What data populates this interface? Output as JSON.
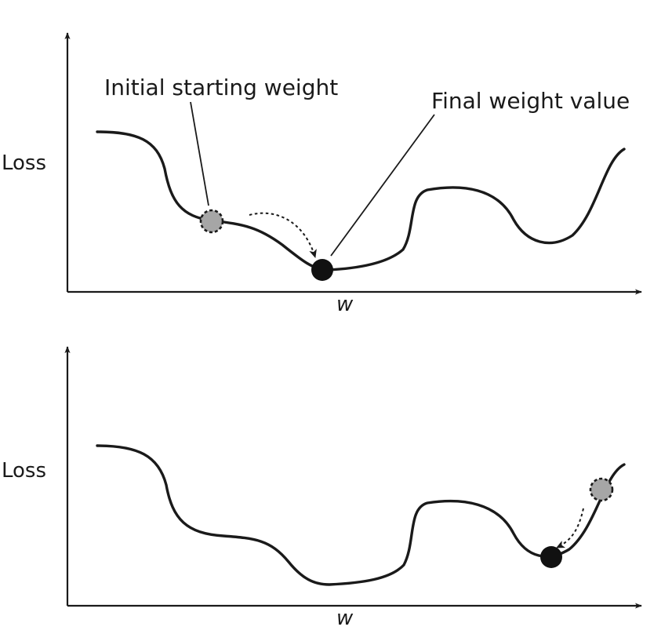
{
  "panels": [
    {
      "ylabel": "Loss",
      "xlabel": "w",
      "annotations": {
        "start_label": "Initial starting weight",
        "end_label": "Final weight value"
      },
      "start_marker": "gray-dashed-circle",
      "end_marker": "black-filled-circle",
      "outcome": "global minimum"
    },
    {
      "ylabel": "Loss",
      "xlabel": "w",
      "start_marker": "gray-dashed-circle",
      "end_marker": "black-filled-circle",
      "outcome": "local minimum"
    }
  ],
  "colors": {
    "curve": "#1a1a1a",
    "start_marker_fill": "#a6a6a6",
    "end_marker_fill": "#111111",
    "background": "#ffffff"
  }
}
